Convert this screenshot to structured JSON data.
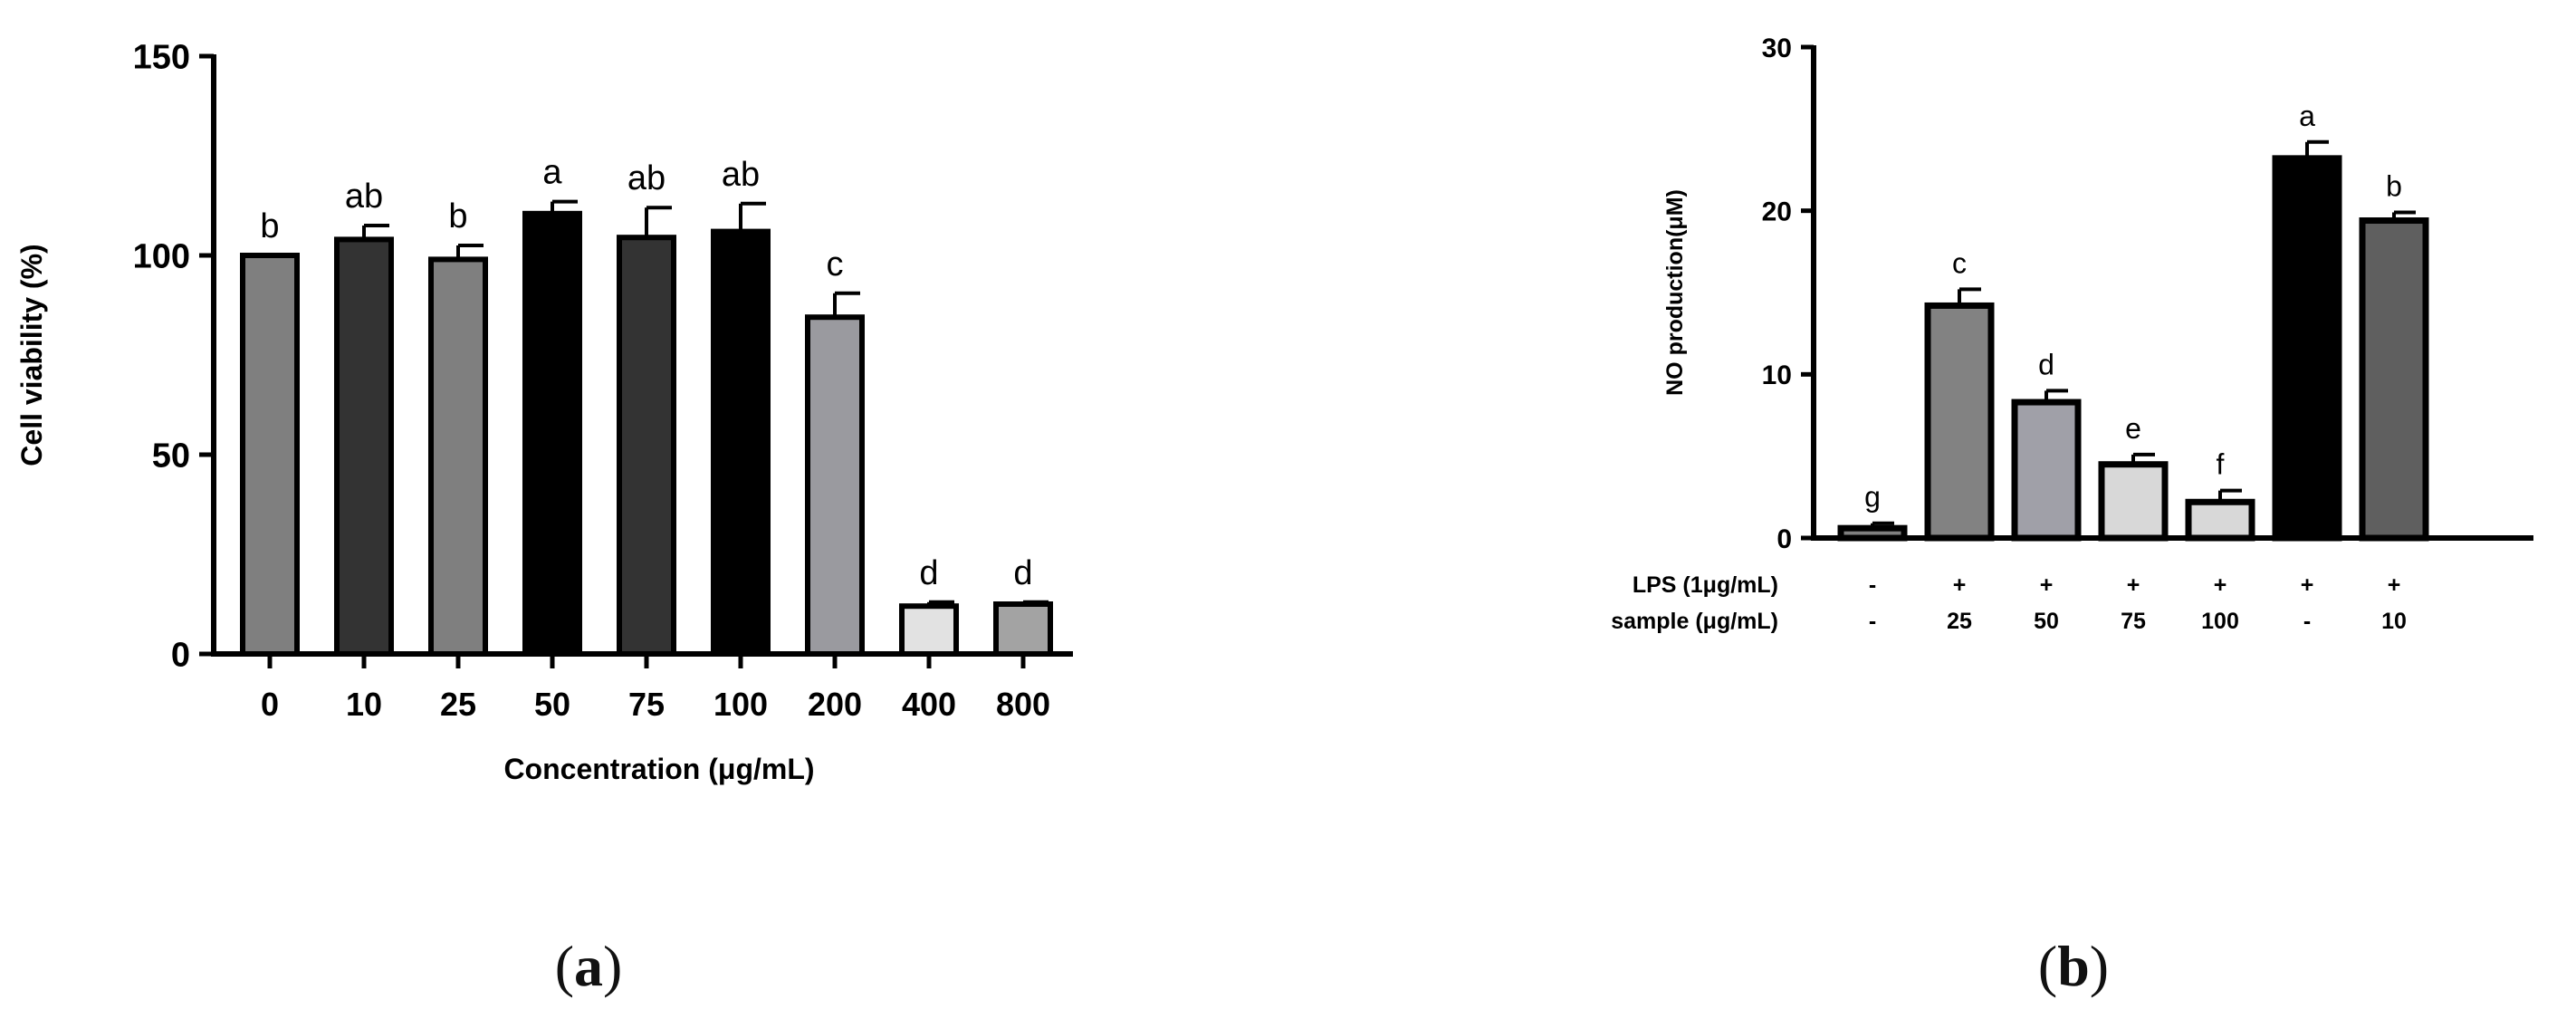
{
  "figure": {
    "panel_labels": [
      {
        "open": "(",
        "letter": "a",
        "close": ")"
      },
      {
        "open": "(",
        "letter": "b",
        "close": ")"
      }
    ]
  },
  "chart_data": [
    {
      "id": "a",
      "type": "bar",
      "title": "",
      "xlabel": "Concentration (μg/mL)",
      "ylabel": "Cell viability (%)",
      "ylim": [
        0,
        150
      ],
      "yticks": [
        0,
        50,
        100,
        150
      ],
      "grid": false,
      "legend": "none",
      "categories": [
        "0",
        "10",
        "25",
        "50",
        "75",
        "100",
        "200",
        "400",
        "800"
      ],
      "values": [
        100,
        104,
        99,
        110.5,
        104.5,
        106,
        84.5,
        12,
        12.5
      ],
      "errors": [
        0,
        3.5,
        3.5,
        3,
        7.5,
        7,
        6,
        1,
        0.5
      ],
      "letters": [
        "b",
        "ab",
        "b",
        "a",
        "ab",
        "ab",
        "c",
        "d",
        "d"
      ],
      "colors": [
        "#7f7f7f",
        "#333333",
        "#7f7f7f",
        "#000000",
        "#333333",
        "#000000",
        "#9a9a9f",
        "#e2e2e2",
        "#a3a3a3"
      ]
    },
    {
      "id": "b",
      "type": "bar",
      "title": "",
      "xlabel": "",
      "ylabel": "NO production(μM)",
      "ylim": [
        0,
        30
      ],
      "yticks": [
        0,
        10,
        20,
        30
      ],
      "grid": false,
      "legend": "none",
      "row_labels": [
        "LPS  (1μg/mL)",
        "sample (μg/mL)"
      ],
      "lps": [
        "-",
        "+",
        "+",
        "+",
        "+",
        "+",
        "+"
      ],
      "sample": [
        "-",
        "25",
        "50",
        "75",
        "100",
        "-",
        "10"
      ],
      "values": [
        0.6,
        14.2,
        8.3,
        4.5,
        2.2,
        23.2,
        19.4
      ],
      "errors": [
        0.3,
        1.0,
        0.7,
        0.6,
        0.7,
        1.0,
        0.5
      ],
      "letters": [
        "g",
        "c",
        "d",
        "e",
        "f",
        "a",
        "b"
      ],
      "colors": [
        "#7f7f7f",
        "#828282",
        "#a0a0a8",
        "#d8d8d8",
        "#d8d8d8",
        "#000000",
        "#5f5f5f"
      ]
    }
  ]
}
